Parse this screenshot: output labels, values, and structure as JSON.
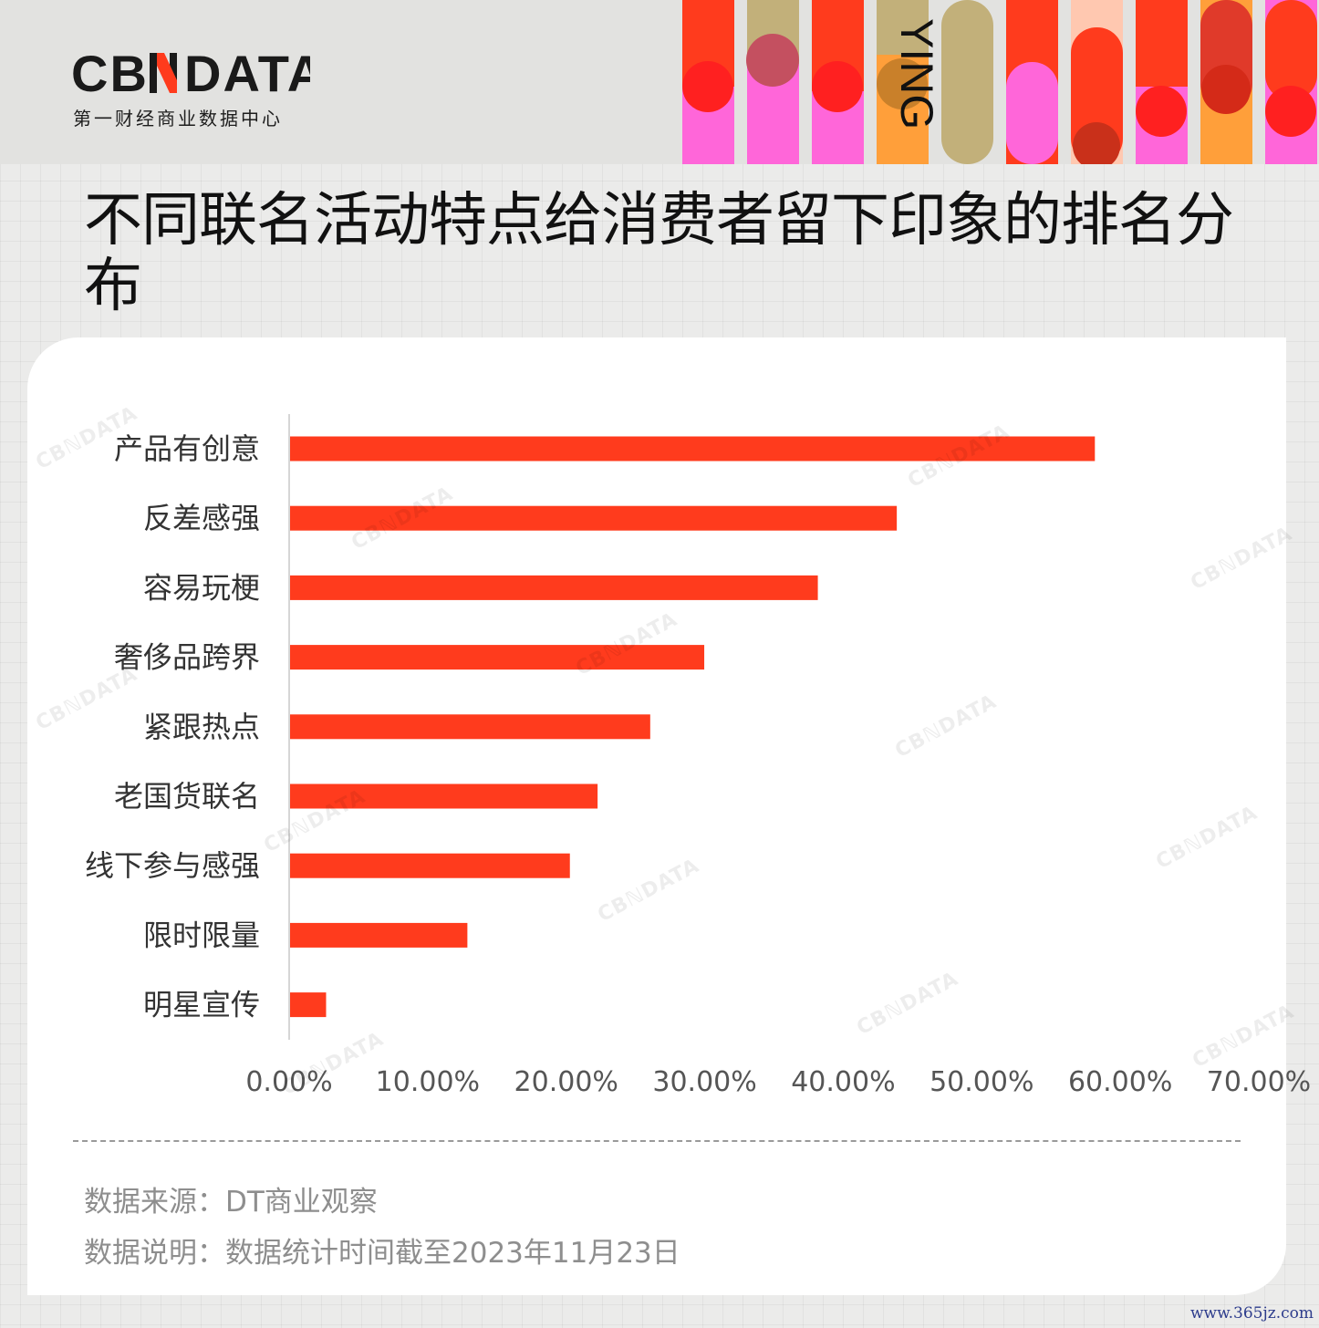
{
  "header": {
    "logo_text": "CBℕDATA",
    "logo_sub": "第一财经商业数据中心",
    "deco_text": "YING"
  },
  "title": "不同联名活动特点给消费者留下印象的排名分布",
  "chart_data": {
    "type": "bar",
    "orientation": "horizontal",
    "categories": [
      "产品有创意",
      "反差感强",
      "容易玩梗",
      "奢侈品跨界",
      "紧跟热点",
      "老国货联名",
      "线下参与感强",
      "限时限量",
      "明星宣传"
    ],
    "values": [
      58.1,
      43.8,
      38.1,
      29.9,
      26.0,
      22.2,
      20.2,
      12.8,
      2.6
    ],
    "x_ticks": [
      "0.00%",
      "10.00%",
      "20.00%",
      "30.00%",
      "40.00%",
      "50.00%",
      "60.00%",
      "70.00%"
    ],
    "xlim": [
      0,
      70
    ],
    "bar_color": "#ff3b1d",
    "grid": false
  },
  "notes": {
    "source": "数据来源：DT商业观察",
    "description": "数据说明：数据统计时间截至2023年11月23日"
  },
  "watermark_text": "CBℕDATA",
  "site_mark": "www.365jz.com"
}
